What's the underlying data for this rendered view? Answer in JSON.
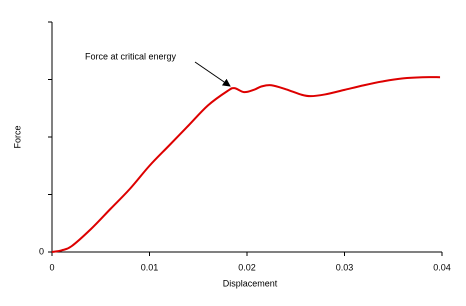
{
  "chart_data": {
    "type": "line",
    "x_label": "Displacement",
    "y_label": "Force",
    "annotation": "Force at critical energy",
    "x": [
      0,
      0.001,
      0.002,
      0.004,
      0.006,
      0.008,
      0.01,
      0.012,
      0.014,
      0.016,
      0.018,
      0.0187,
      0.0197,
      0.0207,
      0.0215,
      0.0225,
      0.024,
      0.0255,
      0.0265,
      0.028,
      0.03,
      0.032,
      0.034,
      0.036,
      0.038,
      0.0398
    ],
    "series": [
      {
        "color": "#dd0000",
        "values": [
          0,
          0.03,
          0.1,
          0.4,
          0.75,
          1.1,
          1.5,
          1.85,
          2.2,
          2.55,
          2.8,
          2.85,
          2.78,
          2.82,
          2.88,
          2.9,
          2.83,
          2.74,
          2.71,
          2.74,
          2.82,
          2.9,
          2.97,
          3.02,
          3.04,
          3.04
        ]
      }
    ],
    "xlim": [
      0,
      0.04
    ],
    "xticks": [
      0,
      0.01,
      0.02,
      0.03,
      0.04
    ],
    "ylim": [
      0,
      4
    ],
    "yticks": [
      0
    ],
    "y_unlabeled_ticks": [
      1,
      2,
      3,
      4
    ]
  }
}
